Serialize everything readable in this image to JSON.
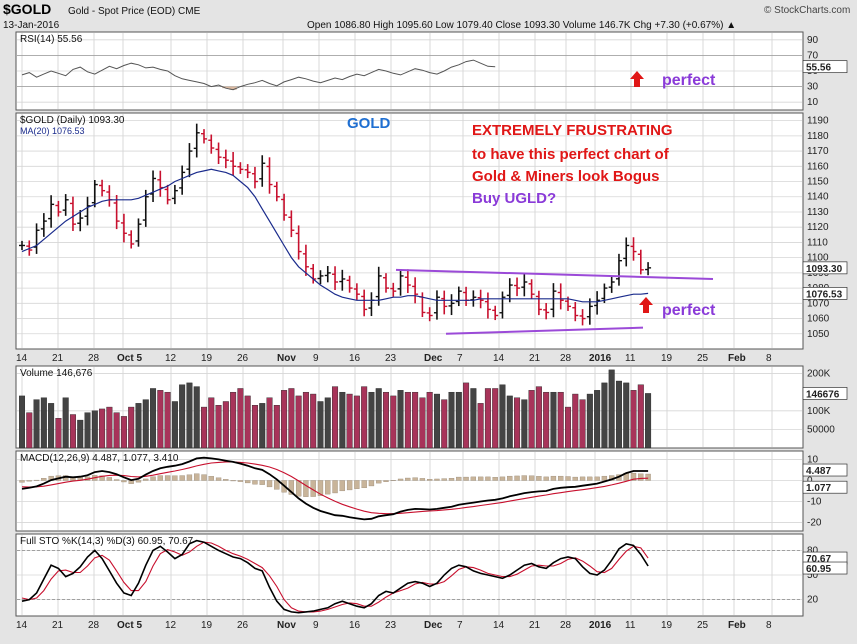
{
  "header": {
    "symbol": "$GOLD",
    "description": "Gold - Spot Price (EOD)  CME",
    "date": "13-Jan-2016",
    "ohlc": "Open 1086.80  High 1095.60  Low 1079.40  Close 1093.30  Volume 146.7K  Chg +7.30 (+0.67%) ▲",
    "watermark": "© StockCharts.com"
  },
  "panels": {
    "rsi_legend": "RSI(14) 55.56",
    "price_legend": "$GOLD (Daily) 1093.30",
    "ma_legend": "MA(20) 1076.53",
    "volume_legend": "Volume 146,676",
    "macd_legend": "MACD(12,26,9) 4.487, 1.077, 3.410",
    "sto_legend": "Full STO %K(14,3) %D(3) 60.95, 70.67"
  },
  "annotations": {
    "gold": "GOLD",
    "line1": "EXTREMELY FRUSTRATING",
    "line2": "to have this perfect chart of",
    "line3": "Gold & Miners look Bogus",
    "buy": "Buy UGLD?",
    "perfect_rsi": "perfect",
    "perfect_price": "perfect"
  },
  "colors": {
    "up_bar": "#111111",
    "down_bar": "#c8102e",
    "ma_line": "#1a2b8c",
    "trendline": "#9b4ad8",
    "volume_up": "#444444",
    "volume_down": "#a8345a",
    "macd_line": "#000000",
    "signal_line": "#c8102e",
    "histogram": "#c8b49a",
    "sto_k": "#000000",
    "sto_d": "#c8102e",
    "arrow": "#e01616"
  },
  "x_axis_labels": [
    "14",
    "21",
    "28",
    "Oct 5",
    "12",
    "19",
    "26",
    "Nov",
    "9",
    "16",
    "23",
    "Dec",
    "7",
    "14",
    "21",
    "28",
    "2016",
    "11",
    "19",
    "25",
    "Feb",
    "8"
  ],
  "chart_data": [
    {
      "type": "line",
      "title": "RSI(14) 55.56",
      "yticks": [
        90,
        70,
        50,
        30,
        10
      ],
      "ylim": [
        0,
        100
      ],
      "last_value_tag": "55.56",
      "values": [
        45,
        48,
        42,
        46,
        50,
        47,
        44,
        52,
        55,
        49,
        46,
        51,
        56,
        53,
        57,
        60,
        58,
        54,
        55,
        52,
        50,
        44,
        40,
        38,
        36,
        34,
        30,
        32,
        28,
        26,
        30,
        33,
        35,
        38,
        34,
        31,
        36,
        39,
        42,
        40,
        37,
        35,
        38,
        41,
        39,
        43,
        46,
        44,
        48,
        52,
        50,
        47,
        45,
        49,
        53,
        51,
        48,
        46,
        50,
        55,
        58,
        62,
        64,
        60,
        56,
        55.56
      ]
    },
    {
      "type": "ohlc",
      "title": "$GOLD (Daily) 1093.30",
      "ylim": [
        1040,
        1195
      ],
      "yticks": [
        1050,
        1060,
        1070,
        1080,
        1090,
        1100,
        1110,
        1120,
        1130,
        1140,
        1150,
        1160,
        1170,
        1180,
        1190
      ],
      "last_value_tags": [
        "1093.30",
        "1076.53"
      ],
      "series": [
        {
          "name": "$GOLD",
          "closes": [
            1108,
            1105,
            1118,
            1124,
            1135,
            1130,
            1138,
            1122,
            1126,
            1134,
            1148,
            1144,
            1138,
            1124,
            1116,
            1109,
            1122,
            1140,
            1152,
            1146,
            1138,
            1144,
            1156,
            1170,
            1182,
            1178,
            1172,
            1166,
            1164,
            1160,
            1158,
            1156,
            1150,
            1162,
            1148,
            1140,
            1128,
            1118,
            1104,
            1094,
            1086,
            1088,
            1090,
            1084,
            1086,
            1080,
            1076,
            1066,
            1072,
            1088,
            1080,
            1078,
            1088,
            1082,
            1076,
            1064,
            1062,
            1074,
            1068,
            1070,
            1078,
            1072,
            1074,
            1072,
            1066,
            1062,
            1074,
            1082,
            1080,
            1084,
            1076,
            1066,
            1064,
            1078,
            1072,
            1068,
            1062,
            1060,
            1068,
            1072,
            1080,
            1084,
            1098,
            1108,
            1104,
            1092,
            1093.3
          ]
        },
        {
          "name": "MA(20)",
          "values": [
            1104,
            1106,
            1108,
            1112,
            1116,
            1120,
            1124,
            1127,
            1130,
            1133,
            1135,
            1137,
            1138,
            1138,
            1138,
            1138,
            1139,
            1141,
            1143,
            1145,
            1147,
            1150,
            1152,
            1154,
            1156,
            1157,
            1158,
            1157,
            1156,
            1154,
            1150,
            1146,
            1140,
            1132,
            1124,
            1116,
            1108,
            1100,
            1094,
            1090,
            1086,
            1082,
            1079,
            1076,
            1074,
            1073,
            1072,
            1072,
            1072,
            1072,
            1073,
            1074,
            1074,
            1075,
            1075,
            1074,
            1073,
            1072,
            1072,
            1072,
            1072,
            1072,
            1072,
            1073,
            1073,
            1073,
            1073,
            1073,
            1073,
            1073,
            1073,
            1073,
            1073,
            1073,
            1073,
            1073,
            1072,
            1071,
            1071,
            1071,
            1072,
            1073,
            1074,
            1075,
            1076,
            1076,
            1076.53
          ]
        }
      ],
      "trendlines": [
        {
          "from": [
            1086,
            1092
          ],
          "to": [
            1176,
            1086
          ]
        },
        {
          "from": [
            1086,
            1050
          ],
          "to": [
            1176,
            1054
          ]
        }
      ]
    },
    {
      "type": "bar",
      "title": "Volume 146,676",
      "yticks": [
        "200K",
        "100K",
        "50000"
      ],
      "ytick_values": [
        200000,
        100000,
        50000
      ],
      "last_value_tag": "146676",
      "values": [
        140000,
        95000,
        130000,
        135000,
        120000,
        80000,
        135000,
        90000,
        75000,
        95000,
        100000,
        105000,
        110000,
        95000,
        85000,
        110000,
        120000,
        130000,
        160000,
        155000,
        150000,
        125000,
        170000,
        175000,
        165000,
        110000,
        135000,
        115000,
        125000,
        150000,
        160000,
        140000,
        115000,
        120000,
        135000,
        115000,
        155000,
        160000,
        140000,
        150000,
        145000,
        125000,
        135000,
        165000,
        150000,
        145000,
        140000,
        165000,
        150000,
        160000,
        150000,
        140000,
        155000,
        150000,
        150000,
        135000,
        150000,
        145000,
        130000,
        150000,
        150000,
        175000,
        160000,
        120000,
        160000,
        160000,
        170000,
        140000,
        135000,
        130000,
        155000,
        165000,
        150000,
        150000,
        150000,
        110000,
        145000,
        130000,
        145000,
        155000,
        175000,
        210000,
        180000,
        175000,
        155000,
        170000,
        146676
      ]
    },
    {
      "type": "line",
      "title": "MACD(12,26,9) 4.487, 1.077, 3.410",
      "yticks": [
        10,
        0,
        -10,
        -20
      ],
      "ylim": [
        -24,
        14
      ],
      "last_value_tags": [
        "4.487",
        "1.077"
      ],
      "series": [
        {
          "name": "MACD",
          "values": [
            -4,
            -3.5,
            -2.8,
            -1.5,
            0.2,
            1.0,
            1.8,
            1.5,
            1.8,
            2.5,
            4.0,
            4.5,
            4.0,
            3.0,
            1.5,
            0.2,
            0.8,
            2.8,
            4.5,
            5.8,
            6.5,
            7.0,
            7.8,
            9.0,
            10.5,
            10.8,
            10.5,
            10.0,
            9.4,
            8.8,
            8.0,
            7.0,
            5.8,
            5.0,
            3.0,
            0.5,
            -2.5,
            -5.5,
            -8.5,
            -11.0,
            -13.0,
            -14.5,
            -15.5,
            -16.5,
            -16.8,
            -17.5,
            -18.0,
            -18.5,
            -18.2,
            -17.0,
            -16.5,
            -16.0,
            -14.8,
            -14.0,
            -13.5,
            -13.6,
            -13.8,
            -13.5,
            -13.0,
            -12.5,
            -11.5,
            -11.0,
            -10.5,
            -10.0,
            -9.5,
            -9.2,
            -8.5,
            -7.5,
            -6.8,
            -6.0,
            -5.5,
            -5.2,
            -5.0,
            -4.0,
            -3.5,
            -3.2,
            -3.0,
            -2.5,
            -2.0,
            -1.5,
            -0.5,
            0.5,
            1.8,
            3.5,
            4.5,
            4.5,
            4.487
          ]
        },
        {
          "name": "Signal",
          "values": [
            -3,
            -3.1,
            -3.0,
            -2.7,
            -2.1,
            -1.5,
            -0.8,
            -0.3,
            0.1,
            0.6,
            1.3,
            2.0,
            2.4,
            2.5,
            2.3,
            1.9,
            1.7,
            2.0,
            2.5,
            3.2,
            3.9,
            4.5,
            5.2,
            6.0,
            6.9,
            7.7,
            8.3,
            8.6,
            8.8,
            8.8,
            8.6,
            8.3,
            7.8,
            7.2,
            6.4,
            5.2,
            3.7,
            1.9,
            -0.2,
            -2.4,
            -4.5,
            -6.5,
            -8.3,
            -9.9,
            -11.3,
            -12.5,
            -13.6,
            -14.6,
            -15.3,
            -15.6,
            -15.8,
            -15.8,
            -15.6,
            -15.3,
            -15.0,
            -14.7,
            -14.5,
            -14.3,
            -14.0,
            -13.7,
            -13.3,
            -12.8,
            -12.4,
            -11.9,
            -11.4,
            -10.9,
            -10.4,
            -9.8,
            -9.2,
            -8.6,
            -8.0,
            -7.4,
            -6.9,
            -6.3,
            -5.8,
            -5.3,
            -4.8,
            -4.4,
            -3.9,
            -3.4,
            -2.8,
            -2.1,
            -1.3,
            -0.4,
            0.6,
            1.0,
            1.077
          ]
        }
      ]
    },
    {
      "type": "line",
      "title": "Full STO %K(14,3) %D(3) 60.95, 70.67",
      "yticks": [
        80,
        50,
        20
      ],
      "ylim": [
        0,
        100
      ],
      "last_value_tags": [
        "70.67",
        "60.95"
      ],
      "series": [
        {
          "name": "%K",
          "values": [
            18,
            20,
            28,
            45,
            62,
            58,
            48,
            52,
            60,
            72,
            80,
            70,
            55,
            40,
            28,
            25,
            40,
            62,
            80,
            85,
            78,
            70,
            75,
            88,
            92,
            90,
            85,
            80,
            76,
            72,
            70,
            65,
            58,
            55,
            35,
            18,
            8,
            5,
            4,
            5,
            6,
            8,
            10,
            15,
            18,
            15,
            12,
            10,
            15,
            25,
            30,
            28,
            34,
            40,
            42,
            40,
            36,
            40,
            50,
            58,
            62,
            60,
            55,
            52,
            50,
            48,
            46,
            50,
            56,
            62,
            64,
            60,
            58,
            65,
            70,
            72,
            70,
            60,
            52,
            50,
            56,
            68,
            82,
            88,
            86,
            75,
            60.95
          ]
        },
        {
          "name": "%D",
          "values": [
            22,
            20,
            22,
            31,
            45,
            55,
            56,
            53,
            53,
            61,
            71,
            74,
            68,
            55,
            41,
            31,
            31,
            42,
            61,
            76,
            81,
            78,
            74,
            78,
            85,
            90,
            89,
            85,
            80,
            76,
            73,
            69,
            64,
            59,
            49,
            36,
            20,
            10,
            6,
            5,
            5,
            6,
            8,
            11,
            14,
            16,
            15,
            12,
            12,
            17,
            23,
            28,
            31,
            34,
            39,
            41,
            39,
            39,
            42,
            49,
            57,
            60,
            59,
            56,
            52,
            50,
            48,
            48,
            51,
            56,
            61,
            62,
            61,
            61,
            64,
            69,
            71,
            67,
            61,
            54,
            53,
            58,
            69,
            79,
            85,
            83,
            70.67
          ]
        }
      ]
    }
  ]
}
